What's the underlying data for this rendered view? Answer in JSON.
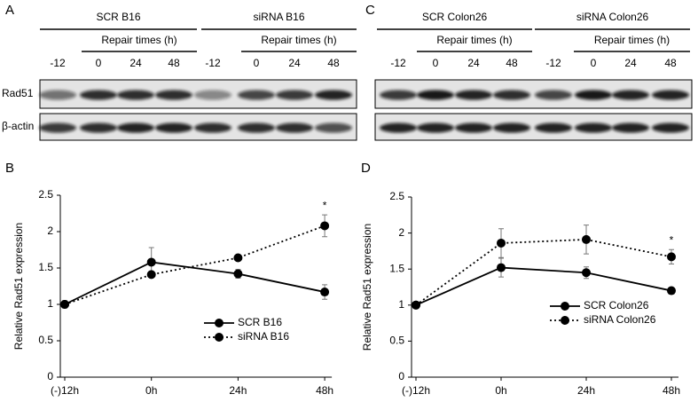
{
  "panels": [
    {
      "letter": "A",
      "groups": [
        {
          "label": "SCR B16",
          "subheader": "Repair times (h)",
          "lanes": [
            "-12",
            "0",
            "24",
            "48"
          ]
        },
        {
          "label": "siRNA B16",
          "subheader": "Repair times (h)",
          "lanes": [
            "-12",
            "0",
            "24",
            "48"
          ]
        }
      ],
      "rows": [
        "Rad51",
        "β-actin"
      ]
    },
    {
      "letter": "C",
      "groups": [
        {
          "label": "SCR Colon26",
          "subheader": "Repair times (h)",
          "lanes": [
            "-12",
            "0",
            "24",
            "48"
          ]
        },
        {
          "label": "siRNA Colon26",
          "subheader": "Repair times (h)",
          "lanes": [
            "-12",
            "0",
            "24",
            "48"
          ]
        }
      ]
    }
  ],
  "chart_data": [
    {
      "type": "line",
      "panel": "B",
      "y_label": "Relative Rad51 expression",
      "categories": [
        "(-)12h",
        "0h",
        "24h",
        "48h"
      ],
      "series": [
        {
          "name": "SCR B16",
          "color": "#000000",
          "line_style": "solid",
          "values": [
            1,
            1.58,
            1.42,
            1.17
          ],
          "errors": [
            0.05,
            0.2,
            0.06,
            0.1
          ]
        },
        {
          "name": "siRNA B16",
          "color": "#000000",
          "line_style": "dotted",
          "values": [
            1,
            1.41,
            1.64,
            2.08
          ],
          "errors": [
            0.05,
            0.04,
            0.02,
            0.15
          ]
        }
      ],
      "annotation": "*",
      "ylim": [
        0,
        2.5
      ],
      "yticks": [
        0,
        0.5,
        1,
        1.5,
        2,
        2.5
      ]
    },
    {
      "type": "line",
      "panel": "D",
      "y_label": "Relative Rad51 expression",
      "categories": [
        "(-)12h",
        "0h",
        "24h",
        "48h"
      ],
      "series": [
        {
          "name": "SCR Colon26",
          "color": "#000000",
          "line_style": "solid",
          "values": [
            1,
            1.52,
            1.45,
            1.2
          ],
          "errors": [
            0.02,
            0.13,
            0.08,
            0.04
          ]
        },
        {
          "name": "siRNA Colon26",
          "color": "#000000",
          "line_style": "dotted",
          "values": [
            1,
            1.86,
            1.91,
            1.67
          ],
          "errors": [
            0.02,
            0.2,
            0.2,
            0.1
          ]
        }
      ],
      "annotation": "*",
      "ylim": [
        0,
        2.5
      ],
      "yticks": [
        0,
        0.5,
        1,
        1.5,
        2,
        2.5
      ]
    }
  ]
}
